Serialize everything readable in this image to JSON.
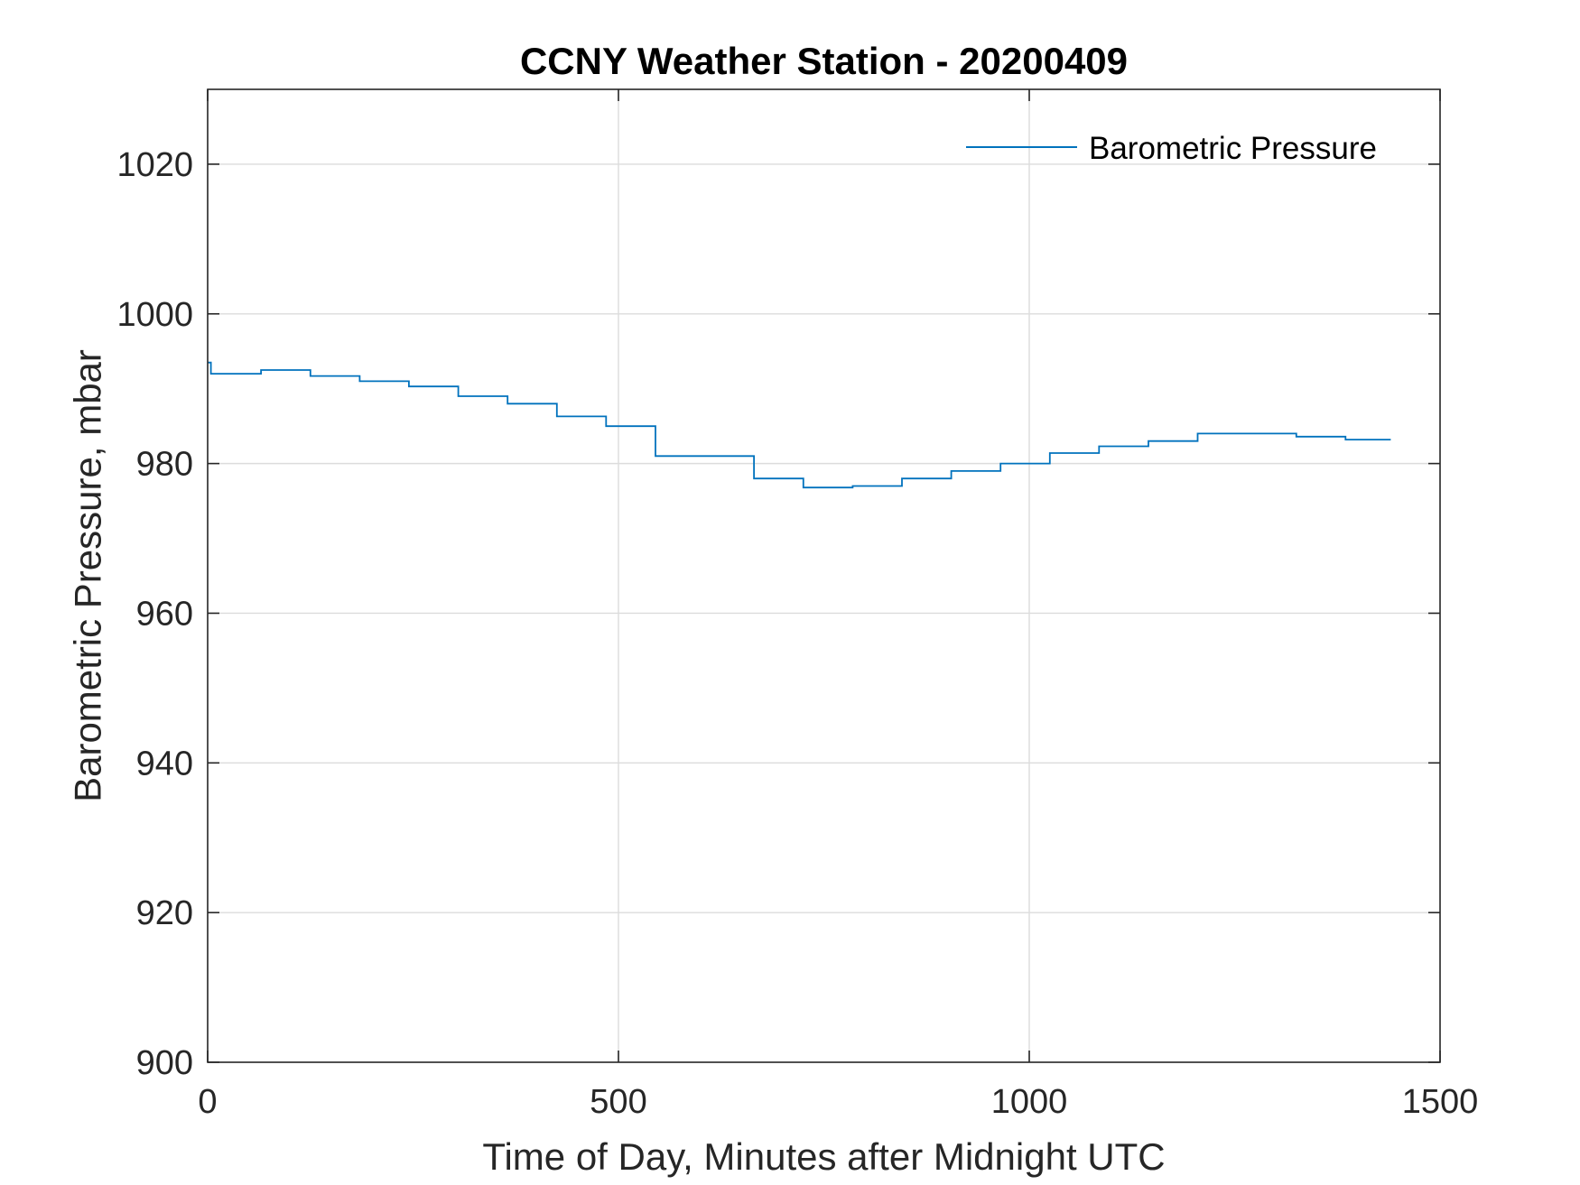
{
  "chart_data": {
    "type": "line",
    "title": "CCNY Weather Station - 20200409",
    "xlabel": "Time of Day, Minutes after Midnight UTC",
    "ylabel": "Barometric Pressure, mbar",
    "xlim": [
      0,
      1500
    ],
    "ylim": [
      900,
      1030
    ],
    "xticks": [
      0,
      500,
      1000,
      1500
    ],
    "xtick_labels": [
      "0",
      "500",
      "1000",
      "1500"
    ],
    "yticks": [
      900,
      920,
      940,
      960,
      980,
      1000,
      1020
    ],
    "ytick_labels": [
      "900",
      "920",
      "940",
      "960",
      "980",
      "1000",
      "1020"
    ],
    "grid": true,
    "legend_position": "top-right",
    "series": [
      {
        "name": "Barometric Pressure",
        "color": "#0072BD",
        "step": true,
        "x": [
          0,
          4,
          65,
          125,
          185,
          245,
          305,
          365,
          425,
          485,
          545,
          665,
          725,
          785,
          845,
          905,
          965,
          1025,
          1085,
          1145,
          1205,
          1325,
          1385,
          1440
        ],
        "y": [
          993.5,
          992.0,
          992.5,
          991.7,
          991.0,
          990.3,
          989.0,
          988.0,
          986.3,
          985.0,
          981.0,
          978.0,
          976.8,
          977.0,
          978.0,
          979.0,
          980.0,
          981.4,
          982.3,
          983.0,
          984.0,
          983.6,
          983.2,
          983.2
        ]
      }
    ]
  }
}
